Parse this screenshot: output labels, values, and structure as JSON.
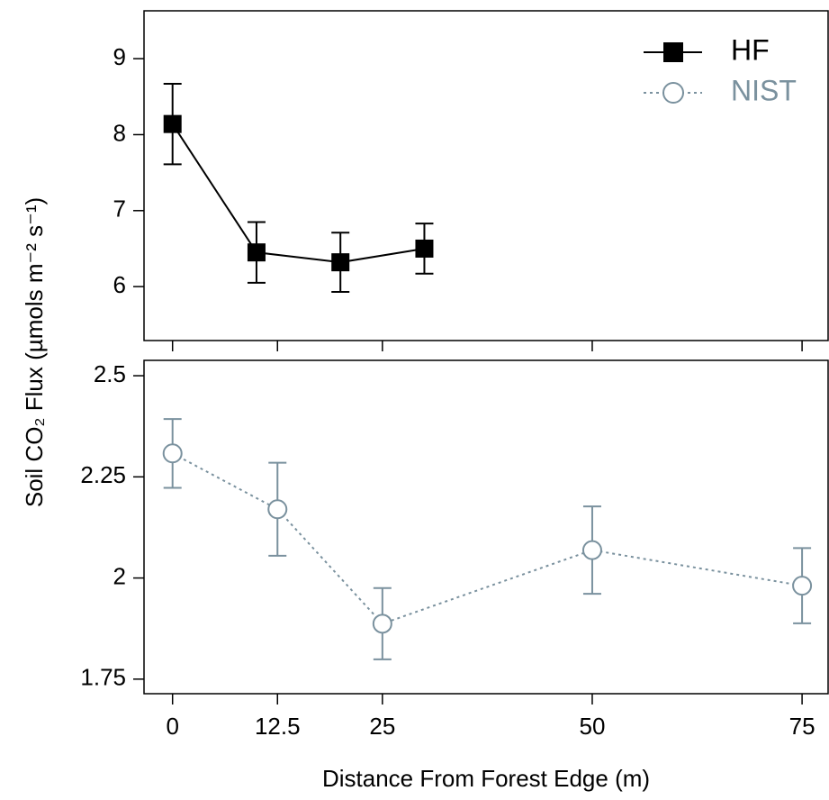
{
  "chart_data": [
    {
      "type": "line",
      "ylabel": "Soil CO₂ Flux (µmols m⁻² s⁻¹)",
      "x": [
        0,
        10,
        20,
        30
      ],
      "series": [
        {
          "name": "HF",
          "color": "#000000",
          "marker": "square",
          "linestyle": "solid",
          "values": [
            8.14,
            6.45,
            6.32,
            6.5
          ],
          "errors": [
            0.53,
            0.4,
            0.39,
            0.33
          ]
        }
      ],
      "xlim": [
        -3.4,
        78.1
      ],
      "xticks": [
        0,
        12.5,
        25,
        50,
        75
      ],
      "ylim": [
        5.29,
        9.63
      ],
      "yticks": [
        6,
        7,
        8,
        9
      ],
      "legend": "upper right"
    },
    {
      "type": "line",
      "xlabel": "Distance From Forest Edge (m)",
      "x": [
        0,
        12.5,
        25,
        50,
        75
      ],
      "series": [
        {
          "name": "NIST",
          "color": "#7a919e",
          "marker": "circle",
          "linestyle": "dotted",
          "values": [
            2.308,
            2.17,
            1.887,
            2.069,
            1.981
          ],
          "errors": [
            0.085,
            0.115,
            0.088,
            0.108,
            0.093
          ]
        }
      ],
      "xlim": [
        -3.4,
        78.1
      ],
      "xticks": [
        0,
        12.5,
        25,
        50,
        75
      ],
      "ylim": [
        1.714,
        2.538
      ],
      "yticks": [
        1.75,
        2,
        2.25,
        2.5
      ]
    }
  ]
}
